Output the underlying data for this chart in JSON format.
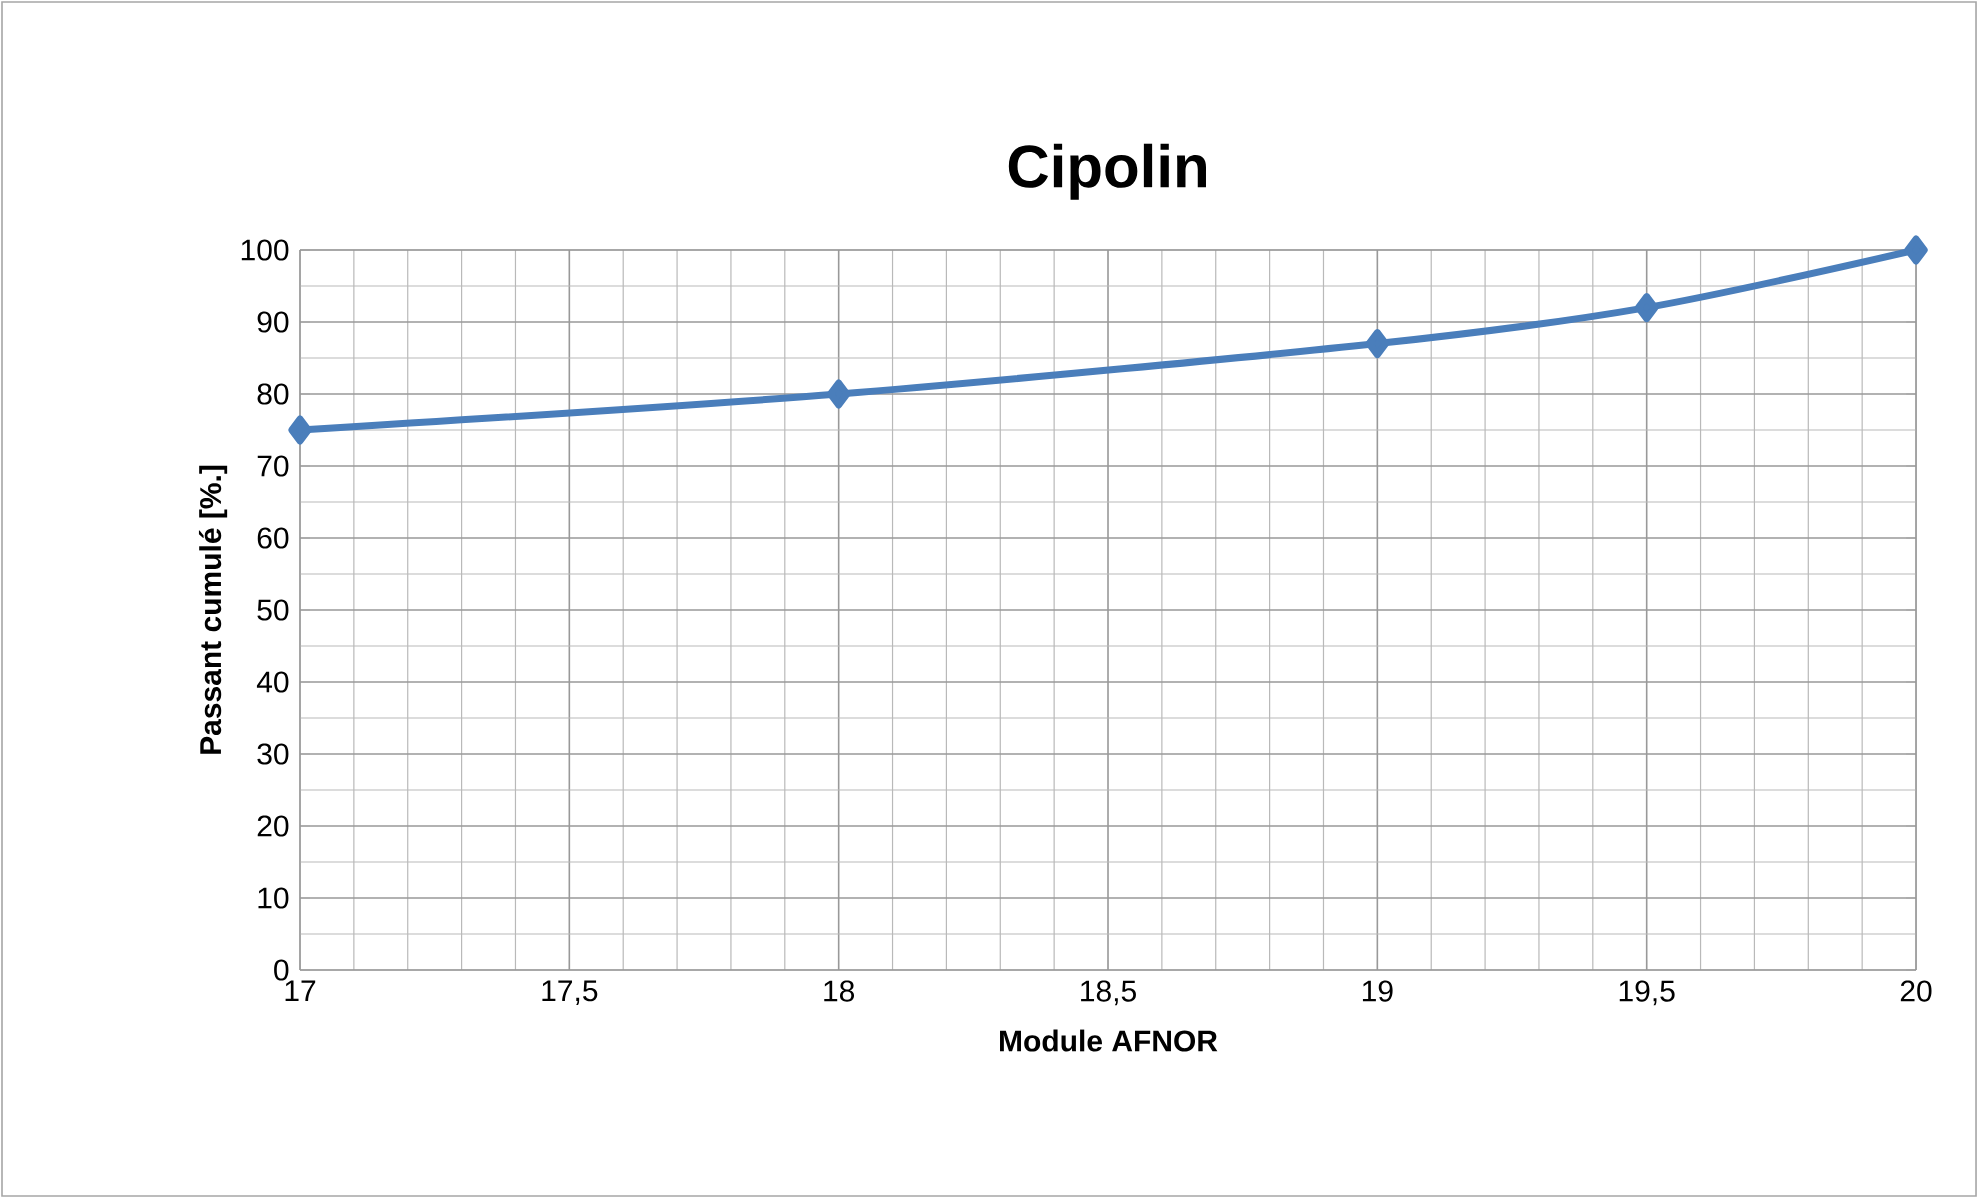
{
  "chart_data": {
    "type": "line",
    "title": "Cipolin",
    "xlabel": "Module AFNOR",
    "ylabel": "Passant cumulé [%.]",
    "x": [
      17,
      18,
      19,
      19.5,
      20
    ],
    "series": [
      {
        "color": "#4a7ebb",
        "values": [
          75,
          80,
          87,
          92,
          100
        ]
      }
    ],
    "xlim": [
      17,
      20
    ],
    "ylim": [
      0,
      100
    ],
    "xticks": [
      17,
      {
        "value": 17.5,
        "label": "17,5"
      },
      18,
      {
        "value": 18.5,
        "label": "18,5"
      },
      19,
      {
        "value": 19.5,
        "label": "19,5"
      },
      20
    ],
    "yticks": [
      0,
      10,
      20,
      30,
      40,
      50,
      60,
      70,
      80,
      90,
      100
    ],
    "grid": true,
    "marker": "diamond",
    "line_style": "solid"
  }
}
